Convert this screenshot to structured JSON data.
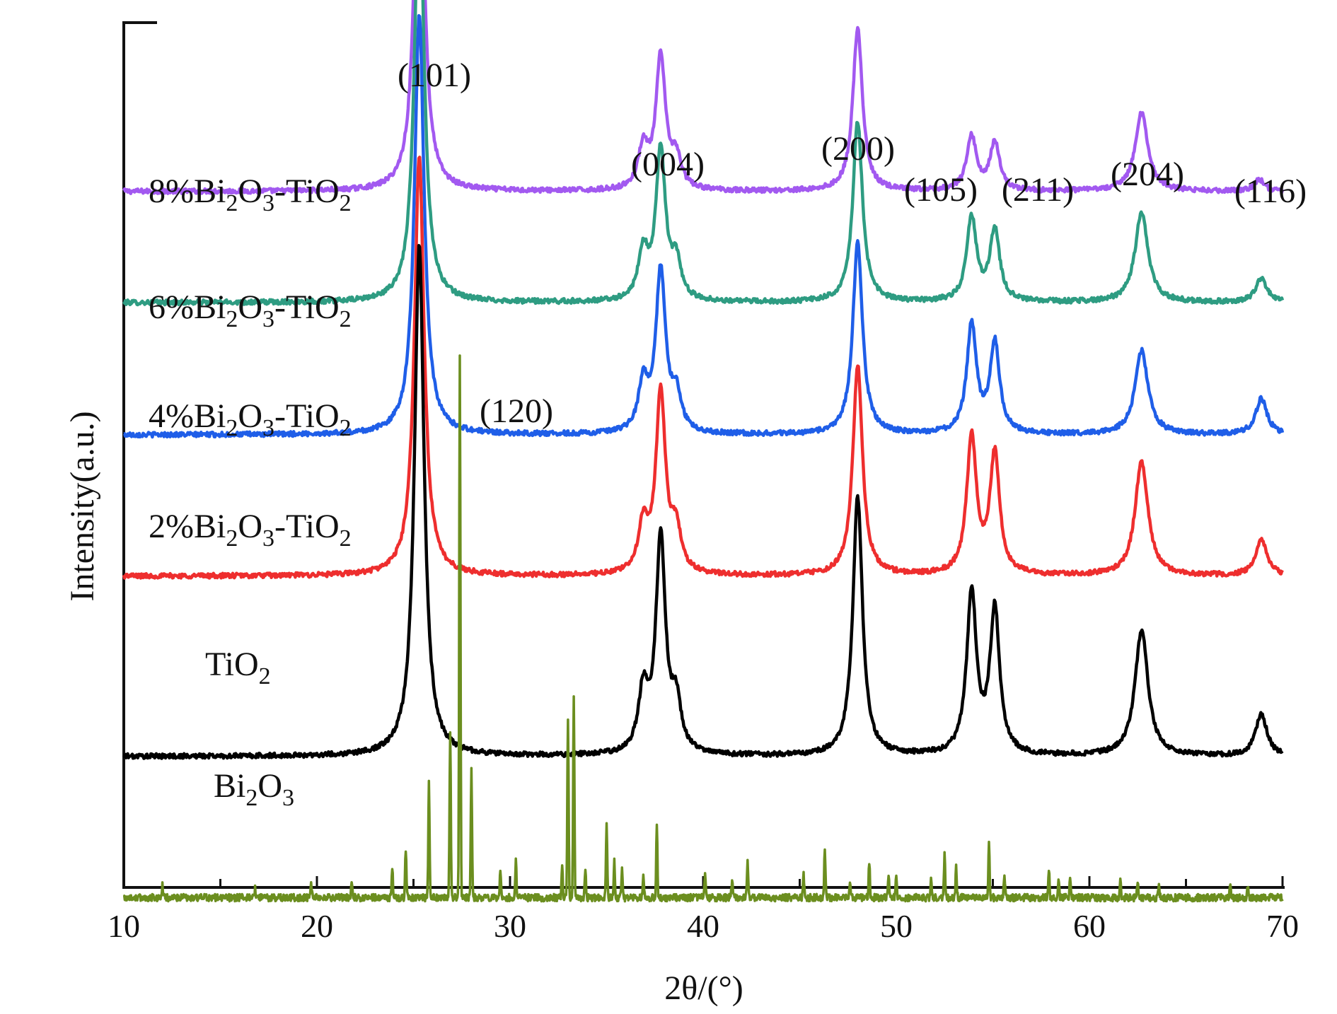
{
  "chart_data": {
    "type": "line",
    "title": "",
    "xlabel": "2θ/(°)",
    "ylabel": "Intensity(a.u.)",
    "xlim": [
      10,
      70
    ],
    "xticks": [
      10,
      20,
      30,
      40,
      50,
      60,
      70
    ],
    "grid": false,
    "y_scale": "arbitrary (stacked, offset traces)",
    "tick_labels": [
      "10",
      "20",
      "30",
      "40",
      "50",
      "60",
      "70"
    ],
    "series": [
      {
        "name": "8%Bi2O3-TiO2",
        "label_parts": [
          [
            "8%Bi",
            ""
          ],
          [
            "2",
            "sub"
          ],
          [
            "O",
            ""
          ],
          [
            "3",
            "sub"
          ],
          [
            "-TiO",
            ""
          ],
          [
            "2",
            "sub"
          ]
        ],
        "color": "#a259f0",
        "baseline": 0.905,
        "kind": "profile",
        "peaks": [
          [
            25.3,
            0.66,
            0.3
          ],
          [
            36.9,
            0.07,
            0.3
          ],
          [
            37.8,
            0.22,
            0.3
          ],
          [
            38.6,
            0.05,
            0.3
          ],
          [
            48.0,
            0.27,
            0.3
          ],
          [
            53.9,
            0.09,
            0.3
          ],
          [
            55.1,
            0.08,
            0.3
          ],
          [
            62.7,
            0.13,
            0.4
          ],
          [
            68.8,
            0.02,
            0.3
          ]
        ]
      },
      {
        "name": "6%Bi2O3-TiO2",
        "label_parts": [
          [
            "6%Bi",
            ""
          ],
          [
            "2",
            "sub"
          ],
          [
            "O",
            ""
          ],
          [
            "3",
            "sub"
          ],
          [
            "-TiO",
            ""
          ],
          [
            "2",
            "sub"
          ]
        ],
        "color": "#2e9c82",
        "baseline": 0.72,
        "kind": "profile",
        "peaks": [
          [
            25.3,
            0.7,
            0.3
          ],
          [
            36.9,
            0.08,
            0.3
          ],
          [
            37.8,
            0.25,
            0.3
          ],
          [
            38.6,
            0.06,
            0.3
          ],
          [
            48.0,
            0.3,
            0.3
          ],
          [
            53.9,
            0.14,
            0.3
          ],
          [
            55.1,
            0.12,
            0.3
          ],
          [
            62.7,
            0.15,
            0.4
          ],
          [
            68.9,
            0.04,
            0.35
          ]
        ]
      },
      {
        "name": "4%Bi2O3-TiO2",
        "label_parts": [
          [
            "4%Bi",
            ""
          ],
          [
            "2",
            "sub"
          ],
          [
            "O",
            ""
          ],
          [
            "3",
            "sub"
          ],
          [
            "-TiO",
            ""
          ],
          [
            "2",
            "sub"
          ]
        ],
        "color": "#1f5ee8",
        "baseline": 0.5,
        "kind": "profile",
        "peaks": [
          [
            25.3,
            0.7,
            0.3
          ],
          [
            36.9,
            0.08,
            0.3
          ],
          [
            37.8,
            0.27,
            0.3
          ],
          [
            38.6,
            0.06,
            0.3
          ],
          [
            48.0,
            0.32,
            0.3
          ],
          [
            53.9,
            0.18,
            0.3
          ],
          [
            55.1,
            0.15,
            0.3
          ],
          [
            62.7,
            0.14,
            0.4
          ],
          [
            68.9,
            0.06,
            0.35
          ]
        ]
      },
      {
        "name": "2%Bi2O3-TiO2",
        "label_parts": [
          [
            "2%Bi",
            ""
          ],
          [
            "2",
            "sub"
          ],
          [
            "O",
            ""
          ],
          [
            "3",
            "sub"
          ],
          [
            "-TiO",
            ""
          ],
          [
            "2",
            "sub"
          ]
        ],
        "color": "#ee2e2e",
        "baseline": 0.265,
        "kind": "profile",
        "peaks": [
          [
            25.3,
            0.7,
            0.3
          ],
          [
            36.9,
            0.08,
            0.3
          ],
          [
            37.8,
            0.3,
            0.3
          ],
          [
            38.6,
            0.07,
            0.3
          ],
          [
            48.0,
            0.35,
            0.3
          ],
          [
            53.9,
            0.23,
            0.3
          ],
          [
            55.1,
            0.2,
            0.3
          ],
          [
            62.7,
            0.19,
            0.4
          ],
          [
            68.9,
            0.06,
            0.35
          ]
        ]
      },
      {
        "name": "TiO2",
        "label_parts": [
          [
            "TiO",
            ""
          ],
          [
            "2",
            "sub"
          ]
        ],
        "color": "#000000",
        "baseline": -0.035,
        "kind": "profile",
        "peaks": [
          [
            25.3,
            0.85,
            0.3
          ],
          [
            36.9,
            0.1,
            0.3
          ],
          [
            37.8,
            0.36,
            0.3
          ],
          [
            38.6,
            0.08,
            0.3
          ],
          [
            48.0,
            0.43,
            0.3
          ],
          [
            53.9,
            0.27,
            0.3
          ],
          [
            55.1,
            0.24,
            0.3
          ],
          [
            62.7,
            0.21,
            0.4
          ],
          [
            68.9,
            0.07,
            0.35
          ]
        ]
      },
      {
        "name": "Bi2O3",
        "label_parts": [
          [
            "Bi",
            ""
          ],
          [
            "2",
            "sub"
          ],
          [
            "O",
            ""
          ],
          [
            "3",
            "sub"
          ]
        ],
        "color": "#6b8e1f",
        "baseline": -0.27,
        "kind": "sticks",
        "peaks": [
          [
            12.0,
            0.02
          ],
          [
            16.8,
            0.015
          ],
          [
            19.7,
            0.02
          ],
          [
            21.8,
            0.02
          ],
          [
            23.9,
            0.05
          ],
          [
            24.6,
            0.08
          ],
          [
            25.8,
            0.2
          ],
          [
            26.9,
            0.28
          ],
          [
            27.4,
            0.9
          ],
          [
            28.0,
            0.21
          ],
          [
            29.5,
            0.05
          ],
          [
            30.3,
            0.06
          ],
          [
            32.7,
            0.05
          ],
          [
            33.0,
            0.3
          ],
          [
            33.3,
            0.33
          ],
          [
            33.9,
            0.05
          ],
          [
            35.0,
            0.12
          ],
          [
            35.4,
            0.06
          ],
          [
            35.8,
            0.05
          ],
          [
            36.9,
            0.04
          ],
          [
            37.6,
            0.12
          ],
          [
            40.1,
            0.04
          ],
          [
            41.5,
            0.03
          ],
          [
            42.3,
            0.06
          ],
          [
            45.2,
            0.04
          ],
          [
            46.3,
            0.08
          ],
          [
            47.6,
            0.03
          ],
          [
            48.6,
            0.06
          ],
          [
            49.6,
            0.04
          ],
          [
            50.0,
            0.04
          ],
          [
            51.8,
            0.03
          ],
          [
            52.5,
            0.07
          ],
          [
            53.1,
            0.05
          ],
          [
            54.8,
            0.09
          ],
          [
            55.6,
            0.04
          ],
          [
            57.9,
            0.05
          ],
          [
            58.4,
            0.03
          ],
          [
            59.0,
            0.03
          ],
          [
            61.6,
            0.03
          ],
          [
            62.5,
            0.03
          ],
          [
            63.6,
            0.02
          ],
          [
            67.3,
            0.02
          ],
          [
            68.2,
            0.02
          ]
        ]
      }
    ],
    "annotations": [
      "(101)",
      "(004)",
      "(200)",
      "(105)",
      "(211)",
      "(204)",
      "(116)",
      "(120)"
    ]
  }
}
